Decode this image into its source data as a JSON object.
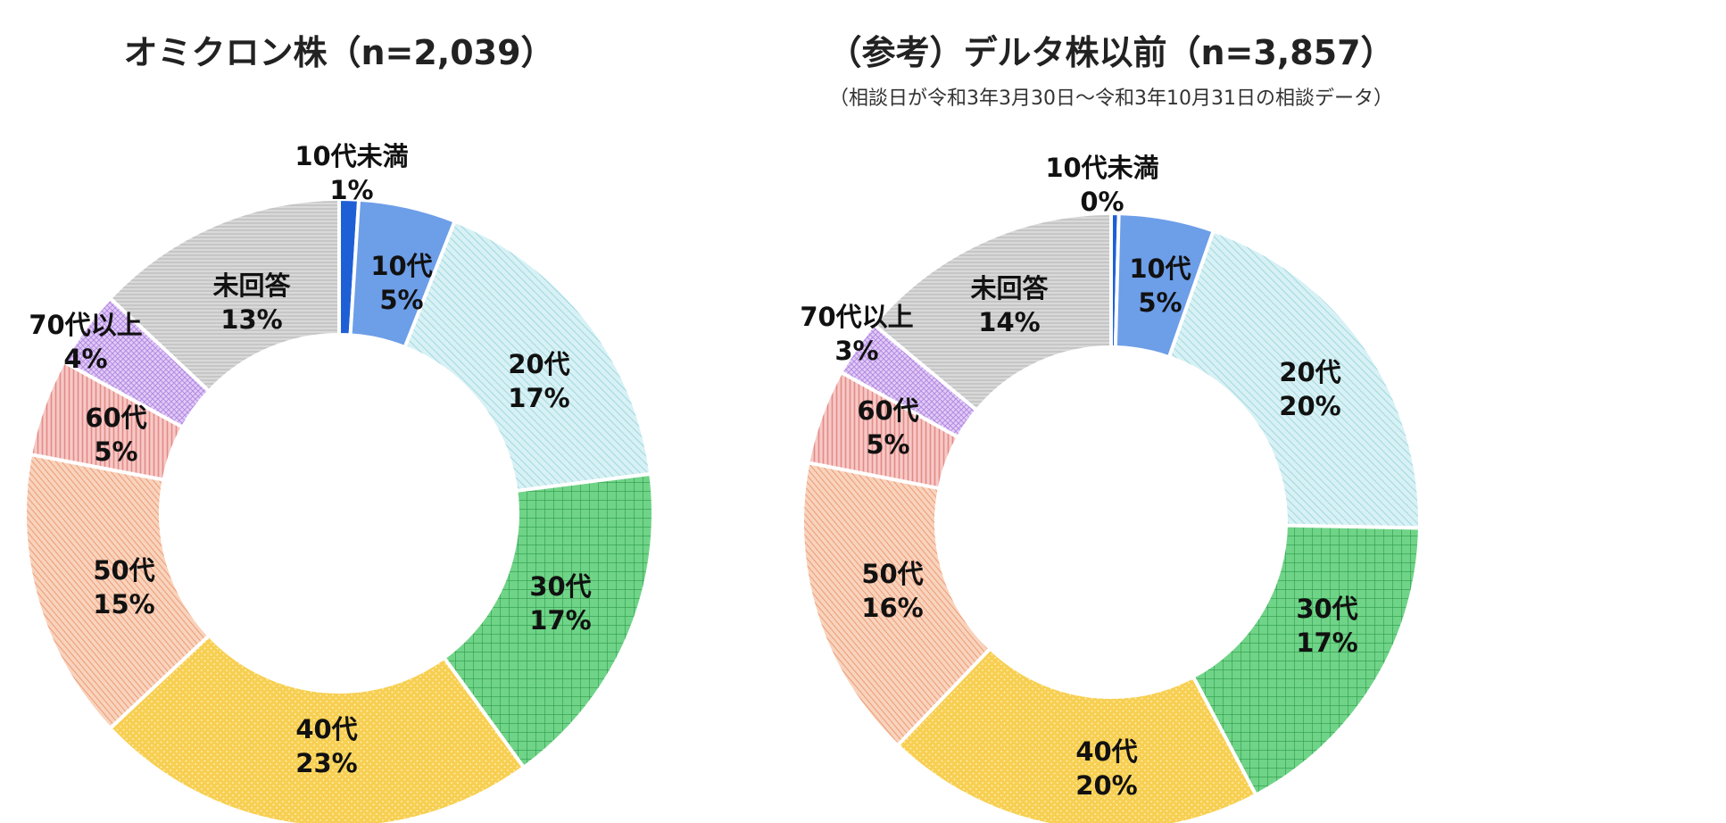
{
  "chart_data": [
    {
      "type": "pie",
      "title": "オミクロン株（n=2,039）",
      "categories": [
        "10代未満",
        "10代",
        "20代",
        "30代",
        "40代",
        "50代",
        "60代",
        "70代以上",
        "未回答"
      ],
      "values": [
        1,
        5,
        17,
        17,
        23,
        15,
        5,
        4,
        13
      ],
      "value_labels": [
        "1%",
        "5%",
        "17%",
        "17%",
        "23%",
        "15%",
        "5%",
        "4%",
        "13%"
      ],
      "unit": "%"
    },
    {
      "type": "pie",
      "title": "（参考）デルタ株以前（n=3,857）",
      "subtitle": "（相談日が令和3年3月30日～令和3年10月31日の相談データ）",
      "categories": [
        "10代未満",
        "10代",
        "20代",
        "30代",
        "40代",
        "50代",
        "60代",
        "70代以上",
        "未回答"
      ],
      "values": [
        0.4,
        5,
        20,
        17,
        20,
        16,
        5,
        3,
        14
      ],
      "value_labels": [
        "0%",
        "5%",
        "20%",
        "17%",
        "20%",
        "16%",
        "5%",
        "3%",
        "14%"
      ],
      "unit": "%"
    }
  ],
  "colors": {
    "10代未満": "#1f5fd6",
    "10代": "#6d9ee8",
    "20代": "#bfe8ee",
    "30代": "#5ccf7a",
    "40代": "#f7cf52",
    "50代": "#f3b18f",
    "60代": "#efa7a4",
    "70代以上": "#d2b2ef",
    "未回答": "#c9c9c9"
  }
}
